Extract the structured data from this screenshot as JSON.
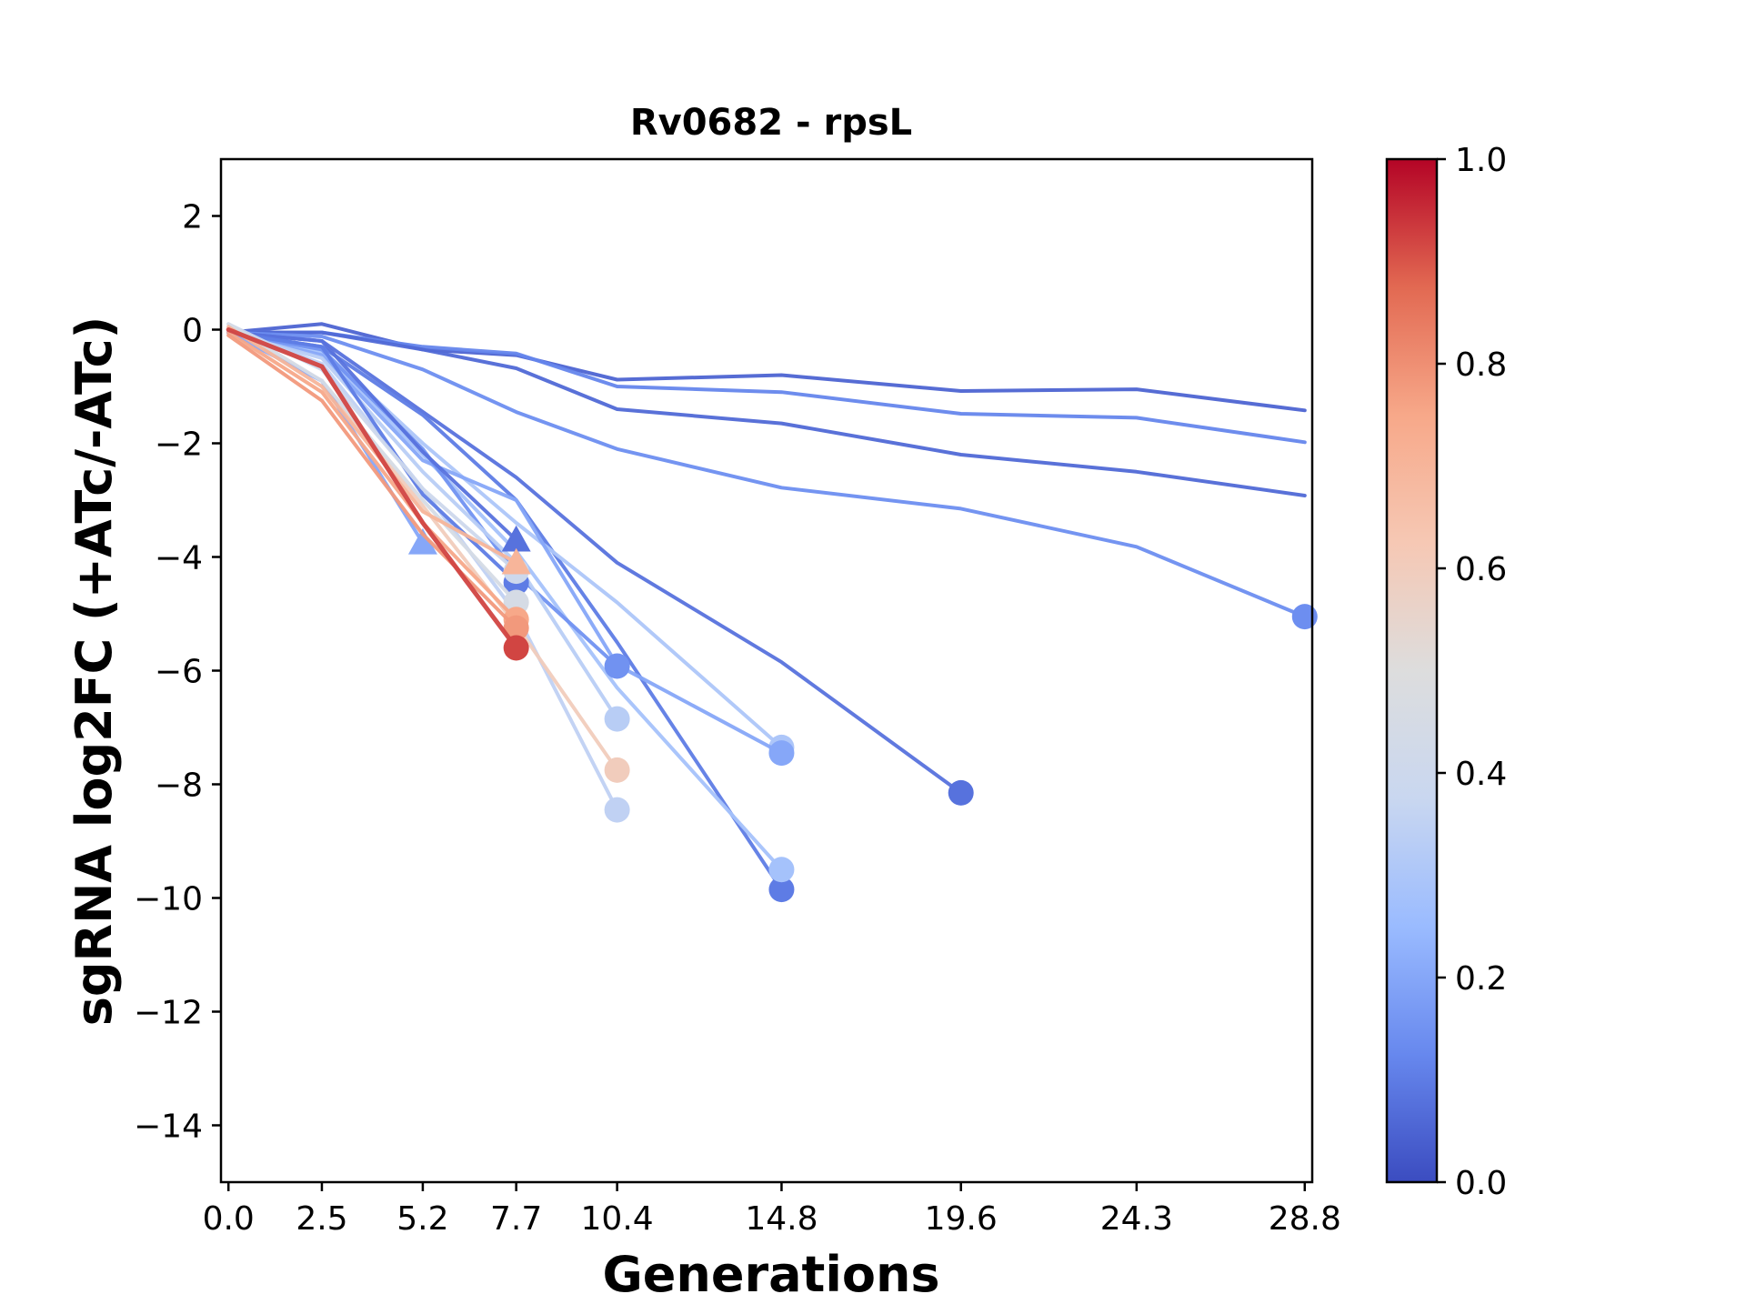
{
  "chart_data": {
    "type": "line",
    "title": "Rv0682 - rpsL",
    "xlabel": "Generations",
    "ylabel": "sgRNA log2FC (+ATc/-ATc)",
    "xticks": [
      0.0,
      2.5,
      5.2,
      7.7,
      10.4,
      14.8,
      19.6,
      24.3,
      28.8
    ],
    "xtick_labels": [
      "0.0",
      "2.5",
      "5.2",
      "7.7",
      "10.4",
      "14.8",
      "19.6",
      "24.3",
      "28.8"
    ],
    "yticks": [
      2,
      0,
      -2,
      -4,
      -6,
      -8,
      -10,
      -12,
      -14
    ],
    "ytick_labels": [
      "2",
      "0",
      "−2",
      "−4",
      "−6",
      "−8",
      "−10",
      "−12",
      "−14"
    ],
    "xlim": [
      -0.2,
      29.0
    ],
    "ylim": [
      -15,
      3
    ],
    "grid": false,
    "colorbar": {
      "range": [
        0.0,
        1.0
      ],
      "ticks": [
        0.0,
        0.2,
        0.4,
        0.6,
        0.8,
        1.0
      ],
      "tick_labels": [
        "0.0",
        "0.2",
        "0.4",
        "0.6",
        "0.8",
        "1.0"
      ],
      "colormap": "coolwarm",
      "colors": [
        "#3b4cc0",
        "#6788ee",
        "#9abbff",
        "#c9d7f0",
        "#dddddd",
        "#f6c8b4",
        "#f7a889",
        "#e26952",
        "#b40426"
      ]
    },
    "series": [
      {
        "c": 0.05,
        "x": [
          0.0,
          2.5,
          5.2,
          7.7,
          10.4,
          14.8,
          19.6,
          24.3,
          28.8
        ],
        "y": [
          -0.05,
          0.1,
          -0.35,
          -0.45,
          -0.88,
          -0.8,
          -1.08,
          -1.05,
          -1.42
        ],
        "end_marker": "none"
      },
      {
        "c": 0.12,
        "x": [
          0.0,
          2.5,
          5.2,
          7.7,
          10.4,
          14.8,
          19.6,
          24.3,
          28.8
        ],
        "y": [
          -0.05,
          -0.05,
          -0.3,
          -0.42,
          -1.0,
          -1.1,
          -1.48,
          -1.55,
          -1.98
        ],
        "end_marker": "none"
      },
      {
        "c": 0.06,
        "x": [
          0.0,
          2.5,
          5.2,
          7.7,
          10.4,
          14.8,
          19.6,
          24.3,
          28.8
        ],
        "y": [
          -0.05,
          -0.05,
          -0.35,
          -0.68,
          -1.4,
          -1.65,
          -2.2,
          -2.5,
          -2.92
        ],
        "end_marker": "none"
      },
      {
        "c": 0.14,
        "x": [
          0.0,
          2.5,
          5.2,
          7.7,
          10.4,
          14.8,
          19.6,
          24.3,
          28.8
        ],
        "y": [
          -0.05,
          -0.12,
          -0.7,
          -1.45,
          -2.1,
          -2.78,
          -3.15,
          -3.82,
          -5.05
        ],
        "end_marker": "circle"
      },
      {
        "c": 0.08,
        "x": [
          0.0,
          2.5,
          7.7,
          10.4,
          14.8,
          19.6
        ],
        "y": [
          -0.05,
          -0.2,
          -2.6,
          -4.1,
          -5.85,
          -8.15
        ],
        "end_marker": "circle"
      },
      {
        "c": 0.1,
        "x": [
          0.0,
          2.5,
          5.2,
          7.7,
          10.4,
          14.8
        ],
        "y": [
          -0.05,
          -0.3,
          -1.5,
          -3.0,
          -5.5,
          -9.85
        ],
        "end_marker": "circle"
      },
      {
        "c": 0.3,
        "x": [
          0.0,
          2.5,
          5.2,
          7.7,
          10.4,
          14.8
        ],
        "y": [
          -0.05,
          -0.35,
          -2.0,
          -3.4,
          -4.8,
          -7.35
        ],
        "end_marker": "circle"
      },
      {
        "c": 0.28,
        "x": [
          0.0,
          2.5,
          5.2,
          7.7,
          10.4,
          14.8
        ],
        "y": [
          -0.05,
          -0.4,
          -2.2,
          -3.9,
          -6.3,
          -9.5
        ],
        "end_marker": "circle"
      },
      {
        "c": 0.2,
        "x": [
          0.0,
          2.5,
          5.2,
          7.7,
          10.4,
          14.8
        ],
        "y": [
          -0.05,
          -0.45,
          -2.3,
          -3.0,
          -5.9,
          -7.45
        ],
        "end_marker": "circle"
      },
      {
        "c": 0.15,
        "x": [
          0.0,
          2.5,
          5.2,
          7.7,
          10.4
        ],
        "y": [
          -0.05,
          -0.35,
          -2.1,
          -4.3,
          -5.92
        ],
        "end_marker": "circle"
      },
      {
        "c": 0.33,
        "x": [
          0.0,
          2.5,
          5.2,
          7.7,
          10.4
        ],
        "y": [
          -0.05,
          -0.5,
          -2.5,
          -4.1,
          -6.85
        ],
        "end_marker": "circle"
      },
      {
        "c": 0.35,
        "x": [
          0.0,
          2.5,
          5.2,
          7.7,
          10.4
        ],
        "y": [
          0.0,
          -0.6,
          -2.8,
          -5.0,
          -8.45
        ],
        "end_marker": "circle"
      },
      {
        "c": 0.6,
        "x": [
          0.0,
          2.5,
          5.2,
          7.7,
          10.4
        ],
        "y": [
          0.0,
          -0.9,
          -3.1,
          -5.2,
          -7.75
        ],
        "end_marker": "circle"
      },
      {
        "c": 0.08,
        "x": [
          0.0,
          2.5,
          5.2,
          7.7
        ],
        "y": [
          -0.05,
          -0.2,
          -2.15,
          -3.7
        ],
        "end_marker": "triangle"
      },
      {
        "c": 0.1,
        "x": [
          0.0,
          2.5,
          5.2,
          7.7
        ],
        "y": [
          -0.05,
          -0.3,
          -2.9,
          -4.45
        ],
        "end_marker": "circle"
      },
      {
        "c": 0.2,
        "x": [
          0.0,
          2.5,
          5.2
        ],
        "y": [
          -0.05,
          -0.9,
          -3.75
        ],
        "end_marker": "triangle"
      },
      {
        "c": 0.4,
        "x": [
          0.0,
          2.5,
          5.2,
          7.7
        ],
        "y": [
          0.1,
          -0.7,
          -2.8,
          -4.25
        ],
        "end_marker": "circle"
      },
      {
        "c": 0.45,
        "x": [
          0.0,
          2.5,
          5.2,
          7.7
        ],
        "y": [
          0.1,
          -0.9,
          -3.0,
          -4.8
        ],
        "end_marker": "circle"
      },
      {
        "c": 0.7,
        "x": [
          0.0,
          2.5,
          5.2,
          7.7
        ],
        "y": [
          0.05,
          -1.0,
          -3.2,
          -4.1
        ],
        "end_marker": "triangle"
      },
      {
        "c": 0.75,
        "x": [
          0.0,
          2.5,
          5.2,
          7.7
        ],
        "y": [
          -0.05,
          -1.1,
          -3.4,
          -5.1
        ],
        "end_marker": "circle"
      },
      {
        "c": 0.78,
        "x": [
          0.0,
          2.5,
          5.2,
          7.7
        ],
        "y": [
          -0.1,
          -1.25,
          -3.6,
          -5.25
        ],
        "end_marker": "circle"
      },
      {
        "c": 0.92,
        "x": [
          0.0,
          2.5,
          5.2,
          7.7
        ],
        "y": [
          0.0,
          -0.65,
          -3.4,
          -5.6
        ],
        "end_marker": "circle"
      }
    ]
  }
}
